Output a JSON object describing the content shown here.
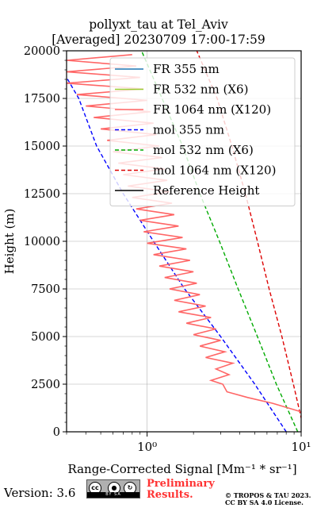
{
  "chart_data": {
    "type": "line",
    "title_line1": "pollyxt_tau at Tel_Aviv",
    "title_line2": "[Averaged] 20230709 17:00-17:59",
    "xlabel": "Range-Corrected Signal [Mm⁻¹ * sr⁻¹]",
    "ylabel": "Height (m)",
    "xscale": "log",
    "xlim": [
      0.3,
      10
    ],
    "ylim": [
      0,
      20000
    ],
    "x_ticks": [
      {
        "value": 1,
        "label": "10⁰"
      },
      {
        "value": 10,
        "label": "10¹"
      }
    ],
    "y_ticks": [
      0,
      2500,
      5000,
      7500,
      10000,
      12500,
      15000,
      17500,
      20000
    ],
    "y_tick_labels": [
      "0",
      "2500",
      "5000",
      "7500",
      "10000",
      "12500",
      "15000",
      "17500",
      "20000"
    ],
    "grid": true,
    "legend_position": "top-right",
    "legend": [
      {
        "label": "FR 355 nm",
        "color": "#1f77b4",
        "style": "solid"
      },
      {
        "label": "FR 532 nm (X6)",
        "color": "#9ACD32",
        "style": "solid"
      },
      {
        "label": "FR 1064 nm (X120)",
        "color": "#ff6666",
        "style": "solid"
      },
      {
        "label": "mol 355 nm",
        "color": "#0000ff",
        "style": "dashed"
      },
      {
        "label": "mol 532 nm (X6)",
        "color": "#00aa00",
        "style": "dashed"
      },
      {
        "label": "mol 1064 nm (X120)",
        "color": "#dd0000",
        "style": "dashed"
      },
      {
        "label": "Reference Height",
        "color": "#000000",
        "style": "solid"
      }
    ],
    "series": [
      {
        "name": "mol 355 nm",
        "color": "#0000ff",
        "dash": true,
        "points": [
          [
            8.0,
            0
          ],
          [
            5.0,
            2500
          ],
          [
            3.0,
            5000
          ],
          [
            1.75,
            7500
          ],
          [
            1.1,
            10000
          ],
          [
            0.7,
            12500
          ],
          [
            0.47,
            15000
          ],
          [
            0.36,
            17500
          ],
          [
            0.3,
            18600
          ]
        ]
      },
      {
        "name": "mol 532 nm (X6)",
        "color": "#00aa00",
        "dash": true,
        "points": [
          [
            9.5,
            0
          ],
          [
            6.9,
            2500
          ],
          [
            5.2,
            5000
          ],
          [
            3.9,
            7500
          ],
          [
            2.95,
            10000
          ],
          [
            2.2,
            12500
          ],
          [
            1.7,
            15000
          ],
          [
            1.25,
            17500
          ],
          [
            0.92,
            20000
          ]
        ]
      },
      {
        "name": "mol 1064 nm (X120)",
        "color": "#dd0000",
        "dash": true,
        "points": [
          [
            10.5,
            0
          ],
          [
            8.9,
            2500
          ],
          [
            7.5,
            5000
          ],
          [
            6.2,
            7500
          ],
          [
            5.2,
            10000
          ],
          [
            4.35,
            12500
          ],
          [
            3.55,
            15000
          ],
          [
            2.85,
            17500
          ],
          [
            2.1,
            20000
          ]
        ]
      },
      {
        "name": "FR 1064 nm (X120)",
        "color": "#ff6666",
        "dash": false,
        "points": [
          [
            10.5,
            1000
          ],
          [
            6.5,
            1500
          ],
          [
            4.5,
            1800
          ],
          [
            3.3,
            2100
          ],
          [
            3.1,
            2500
          ],
          [
            2.6,
            2700
          ],
          [
            3.4,
            3000
          ],
          [
            2.8,
            3300
          ],
          [
            3.6,
            3600
          ],
          [
            2.4,
            3900
          ],
          [
            3.2,
            4200
          ],
          [
            2.2,
            4500
          ],
          [
            3.0,
            4800
          ],
          [
            2.0,
            5100
          ],
          [
            2.8,
            5400
          ],
          [
            1.8,
            5700
          ],
          [
            2.6,
            6000
          ],
          [
            1.6,
            6300
          ],
          [
            2.4,
            6600
          ],
          [
            1.5,
            6900
          ],
          [
            2.2,
            7200
          ],
          [
            1.4,
            7500
          ],
          [
            2.1,
            7800
          ],
          [
            1.3,
            8100
          ],
          [
            2.0,
            8400
          ],
          [
            1.2,
            8700
          ],
          [
            1.9,
            9000
          ],
          [
            1.1,
            9300
          ],
          [
            1.8,
            9600
          ],
          [
            1.0,
            9900
          ],
          [
            1.7,
            10200
          ],
          [
            0.95,
            10500
          ],
          [
            1.6,
            10800
          ],
          [
            0.9,
            11100
          ],
          [
            1.5,
            11400
          ],
          [
            0.85,
            11700
          ],
          [
            1.45,
            12000
          ],
          [
            0.8,
            12300
          ],
          [
            1.4,
            12600
          ],
          [
            0.75,
            12900
          ],
          [
            1.35,
            13200
          ],
          [
            0.7,
            13500
          ],
          [
            1.3,
            13800
          ],
          [
            0.65,
            14100
          ],
          [
            1.25,
            14400
          ],
          [
            0.6,
            14700
          ],
          [
            1.2,
            15000
          ],
          [
            0.55,
            15300
          ],
          [
            1.15,
            15600
          ],
          [
            0.5,
            15900
          ],
          [
            1.1,
            16200
          ],
          [
            0.45,
            16500
          ],
          [
            1.05,
            16800
          ],
          [
            0.4,
            17100
          ],
          [
            1.0,
            17400
          ],
          [
            0.35,
            17700
          ],
          [
            0.95,
            18000
          ],
          [
            0.3,
            18300
          ],
          [
            0.9,
            18600
          ],
          [
            0.3,
            18900
          ],
          [
            0.85,
            19200
          ],
          [
            0.3,
            19500
          ],
          [
            0.8,
            19800
          ]
        ]
      }
    ]
  },
  "footer": {
    "version": "Version: 3.6",
    "cc_label": "BY   SA",
    "preliminary_line1": "Preliminary",
    "preliminary_line2": "Results.",
    "copyright_line1": "© TROPOS & TAU 2023.",
    "copyright_line2": "CC BY SA 4.0 License."
  }
}
